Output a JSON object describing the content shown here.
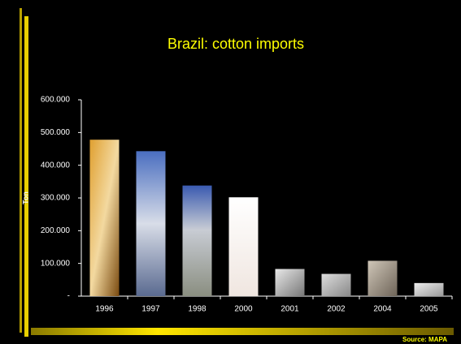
{
  "chart_data": {
    "type": "bar",
    "title": "Brazil: cotton imports",
    "y_label": "Ton",
    "source": "Source: MAPA",
    "categories": [
      "1996",
      "1997",
      "1998",
      "2000",
      "2001",
      "2002",
      "2004",
      "2005"
    ],
    "values": [
      478000,
      443000,
      338000,
      302000,
      83000,
      68000,
      108000,
      40000
    ],
    "ylim": [
      0,
      600000
    ],
    "yticks": [
      {
        "value": 0,
        "label": "-"
      },
      {
        "value": 100000,
        "label": "100.000"
      },
      {
        "value": 200000,
        "label": "200.000"
      },
      {
        "value": 300000,
        "label": "300.000"
      },
      {
        "value": 400000,
        "label": "400.000"
      },
      {
        "value": 500000,
        "label": "500.000"
      },
      {
        "value": 600000,
        "label": "600.000"
      }
    ],
    "grid": false
  }
}
